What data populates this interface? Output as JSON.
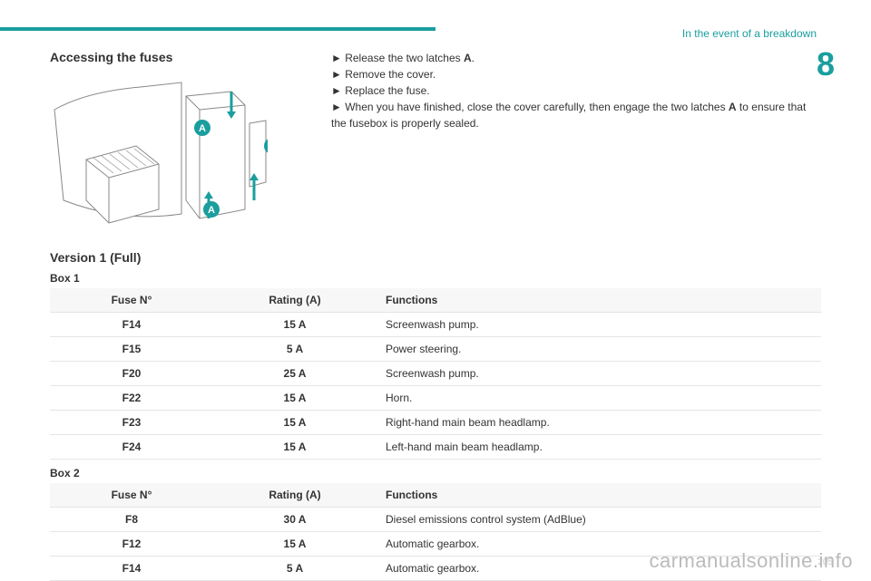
{
  "accent_color": "#1a9e9e",
  "header": {
    "breadcrumb": "In the event of a breakdown",
    "chapter_number": "8"
  },
  "left": {
    "title": "Accessing the fuses",
    "diagram": {
      "badge_label": "A",
      "badge_fill": "#1a9e9e",
      "badge_text": "#ffffff",
      "arrow_fill": "#1a9e9e",
      "line_color": "#888888"
    }
  },
  "right": {
    "bullets": [
      {
        "pre": "Release the two latches ",
        "bold": "A",
        "post": "."
      },
      {
        "pre": "Remove the cover.",
        "bold": "",
        "post": ""
      },
      {
        "pre": "Replace the fuse.",
        "bold": "",
        "post": ""
      },
      {
        "pre": "When you have finished, close the cover carefully, then engage the two latches ",
        "bold": "A",
        "post": " to ensure that the fusebox is properly sealed."
      }
    ]
  },
  "version_title": "Version 1 (Full)",
  "box1": {
    "label": "Box 1",
    "columns": [
      "Fuse N°",
      "Rating (A)",
      "Functions"
    ],
    "rows": [
      [
        "F14",
        "15 A",
        "Screenwash pump."
      ],
      [
        "F15",
        "5 A",
        "Power steering."
      ],
      [
        "F20",
        "25 A",
        "Screenwash pump."
      ],
      [
        "F22",
        "15 A",
        "Horn."
      ],
      [
        "F23",
        "15 A",
        "Right-hand main beam headlamp."
      ],
      [
        "F24",
        "15 A",
        "Left-hand main beam headlamp."
      ]
    ]
  },
  "box2": {
    "label": "Box 2",
    "columns": [
      "Fuse N°",
      "Rating (A)",
      "Functions"
    ],
    "rows": [
      [
        "F8",
        "30 A",
        "Diesel emissions control system (AdBlue)"
      ],
      [
        "F12",
        "15 A",
        "Automatic gearbox."
      ],
      [
        "F14",
        "5 A",
        "Automatic gearbox."
      ]
    ]
  },
  "watermark": "carmanualsonline.info",
  "page_number": "205"
}
